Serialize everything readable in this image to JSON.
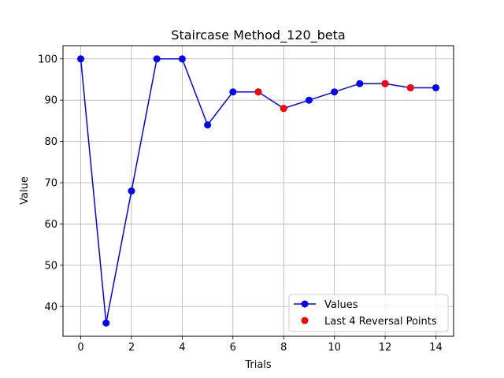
{
  "chart_data": {
    "type": "line",
    "title": "Staircase Method_120_beta",
    "xlabel": "Trials",
    "ylabel": "Value",
    "xlim": [
      -0.7,
      14.7
    ],
    "ylim": [
      32.8,
      103.2
    ],
    "xticks": [
      0,
      2,
      4,
      6,
      8,
      10,
      12,
      14
    ],
    "yticks": [
      40,
      50,
      60,
      70,
      80,
      90,
      100
    ],
    "grid": true,
    "legend_position": "lower-right",
    "series": [
      {
        "name": "Values",
        "color": "#0000ff",
        "marker": "circle",
        "x": [
          0,
          1,
          2,
          3,
          4,
          5,
          6,
          7,
          8,
          9,
          10,
          11,
          12,
          13,
          14
        ],
        "y": [
          100,
          36,
          68,
          100,
          100,
          84,
          92,
          92,
          88,
          90,
          92,
          94,
          94,
          93,
          93
        ]
      },
      {
        "name": "Last 4 Reversal Points",
        "color": "#ff0000",
        "marker": "circle",
        "line": false,
        "x": [
          7,
          8,
          12,
          13
        ],
        "y": [
          92,
          88,
          94,
          93
        ]
      }
    ]
  }
}
